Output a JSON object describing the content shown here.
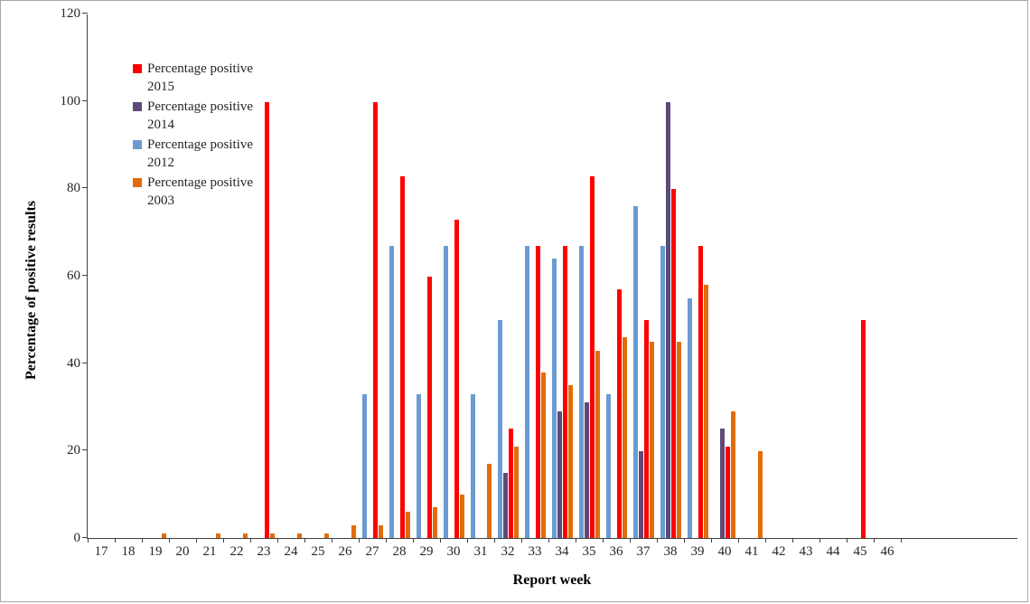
{
  "chart_data": {
    "type": "bar",
    "title": "",
    "xlabel": "Report week",
    "ylabel": "Percentage of positive results",
    "ylim": [
      0,
      120
    ],
    "yticks": [
      0,
      20,
      40,
      60,
      80,
      100,
      120
    ],
    "grid": false,
    "legend_position": "top-left-inside",
    "categories": [
      "17",
      "18",
      "19",
      "20",
      "21",
      "22",
      "23",
      "24",
      "25",
      "26",
      "27",
      "28",
      "29",
      "30",
      "31",
      "32",
      "33",
      "34",
      "35",
      "36",
      "37",
      "38",
      "39",
      "40",
      "41",
      "42",
      "43",
      "44",
      "45",
      "46"
    ],
    "series": [
      {
        "name": "Percentage positive 2012",
        "color": "#6B9BD2",
        "values": [
          0,
          0,
          0,
          0,
          0,
          0,
          0,
          0,
          0,
          0,
          33,
          67,
          33,
          67,
          33,
          50,
          67,
          64,
          67,
          33,
          76,
          67,
          55,
          0,
          0,
          0,
          0,
          0,
          0,
          0
        ]
      },
      {
        "name": "Percentage positive 2014",
        "color": "#5F497A",
        "values": [
          0,
          0,
          0,
          0,
          0,
          0,
          0,
          0,
          0,
          0,
          0,
          0,
          0,
          0,
          0,
          15,
          0,
          29,
          31,
          0,
          20,
          100,
          0,
          25,
          0,
          0,
          0,
          0,
          0,
          0
        ]
      },
      {
        "name": "Percentage positive 2015",
        "color": "#FF0000",
        "values": [
          0,
          0,
          0,
          0,
          0,
          0,
          100,
          0,
          0,
          0,
          100,
          83,
          60,
          73,
          0,
          25,
          67,
          67,
          83,
          57,
          50,
          80,
          67,
          21,
          0,
          0,
          0,
          0,
          50,
          0
        ]
      },
      {
        "name": "Percentage positive 2003",
        "color": "#E36C0A",
        "values": [
          0,
          0,
          1,
          0,
          1,
          1,
          1,
          1,
          1,
          3,
          3,
          6,
          7,
          10,
          17,
          21,
          38,
          35,
          43,
          46,
          45,
          45,
          58,
          29,
          20,
          0,
          0,
          0,
          0,
          0
        ]
      }
    ]
  },
  "legend": {
    "items": [
      {
        "line1": "Percentage positive",
        "line2": "2015",
        "color": "#FF0000"
      },
      {
        "line1": "Percentage positive",
        "line2": "2014",
        "color": "#5F497A"
      },
      {
        "line1": "Percentage positive",
        "line2": "2012",
        "color": "#6B9BD2"
      },
      {
        "line1": "Percentage positive",
        "line2": "2003",
        "color": "#E36C0A"
      }
    ]
  }
}
